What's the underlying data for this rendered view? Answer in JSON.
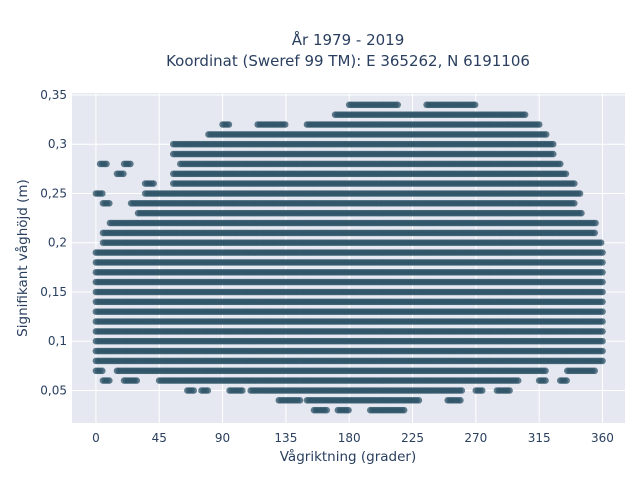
{
  "chart_data": {
    "type": "scatter",
    "title": "År 1979 - 2019",
    "subtitle": "Koordinat (Sweref 99 TM): E 365262, N 6191106",
    "xlabel": "Vågriktning (grader)",
    "ylabel": "Signifikant våghöjd (m)",
    "xlim": [
      -17,
      376
    ],
    "ylim": [
      0.017,
      0.352
    ],
    "x_ticks": [
      0,
      45,
      90,
      135,
      180,
      225,
      270,
      315,
      360
    ],
    "x_tick_labels": [
      "0",
      "45",
      "90",
      "135",
      "180",
      "225",
      "270",
      "315",
      "360"
    ],
    "y_ticks": [
      0.05,
      0.1,
      0.15,
      0.2,
      0.25,
      0.3,
      0.35
    ],
    "y_tick_labels": [
      "0,05",
      "0,1",
      "0,15",
      "0,2",
      "0,25",
      "0,3",
      "0,35"
    ],
    "grid": true,
    "series": [
      {
        "marker_color": "#2f5468",
        "y_step": 0.01,
        "rows": [
          {
            "y": 0.03,
            "x_ranges": [
              [
                155,
                165
              ],
              [
                172,
                180
              ],
              [
                195,
                220
              ]
            ]
          },
          {
            "y": 0.04,
            "x_ranges": [
              [
                130,
                145
              ],
              [
                150,
                230
              ],
              [
                250,
                260
              ]
            ]
          },
          {
            "y": 0.05,
            "x_ranges": [
              [
                65,
                70
              ],
              [
                75,
                80
              ],
              [
                95,
                105
              ],
              [
                110,
                260
              ],
              [
                270,
                275
              ],
              [
                285,
                295
              ]
            ]
          },
          {
            "y": 0.06,
            "x_ranges": [
              [
                5,
                10
              ],
              [
                20,
                30
              ],
              [
                45,
                300
              ],
              [
                315,
                320
              ],
              [
                330,
                335
              ]
            ]
          },
          {
            "y": 0.07,
            "x_ranges": [
              [
                0,
                5
              ],
              [
                15,
                320
              ],
              [
                335,
                355
              ]
            ]
          },
          {
            "y": 0.08,
            "x_ranges": [
              [
                0,
                360
              ]
            ]
          },
          {
            "y": 0.09,
            "x_ranges": [
              [
                0,
                360
              ]
            ]
          },
          {
            "y": 0.1,
            "x_ranges": [
              [
                0,
                360
              ]
            ]
          },
          {
            "y": 0.11,
            "x_ranges": [
              [
                0,
                360
              ]
            ]
          },
          {
            "y": 0.12,
            "x_ranges": [
              [
                0,
                360
              ]
            ]
          },
          {
            "y": 0.13,
            "x_ranges": [
              [
                0,
                360
              ]
            ]
          },
          {
            "y": 0.14,
            "x_ranges": [
              [
                0,
                360
              ]
            ]
          },
          {
            "y": 0.15,
            "x_ranges": [
              [
                0,
                360
              ]
            ]
          },
          {
            "y": 0.16,
            "x_ranges": [
              [
                0,
                360
              ]
            ]
          },
          {
            "y": 0.17,
            "x_ranges": [
              [
                0,
                360
              ]
            ]
          },
          {
            "y": 0.18,
            "x_ranges": [
              [
                0,
                360
              ]
            ]
          },
          {
            "y": 0.19,
            "x_ranges": [
              [
                0,
                360
              ]
            ]
          },
          {
            "y": 0.2,
            "x_ranges": [
              [
                5,
                360
              ]
            ]
          },
          {
            "y": 0.21,
            "x_ranges": [
              [
                5,
                355
              ]
            ]
          },
          {
            "y": 0.22,
            "x_ranges": [
              [
                10,
                355
              ]
            ]
          },
          {
            "y": 0.23,
            "x_ranges": [
              [
                30,
                345
              ]
            ]
          },
          {
            "y": 0.24,
            "x_ranges": [
              [
                5,
                10
              ],
              [
                25,
                340
              ]
            ]
          },
          {
            "y": 0.25,
            "x_ranges": [
              [
                0,
                5
              ],
              [
                35,
                345
              ]
            ]
          },
          {
            "y": 0.26,
            "x_ranges": [
              [
                35,
                42
              ],
              [
                55,
                340
              ]
            ]
          },
          {
            "y": 0.27,
            "x_ranges": [
              [
                15,
                20
              ],
              [
                55,
                335
              ]
            ]
          },
          {
            "y": 0.28,
            "x_ranges": [
              [
                3,
                8
              ],
              [
                20,
                25
              ],
              [
                60,
                330
              ]
            ]
          },
          {
            "y": 0.29,
            "x_ranges": [
              [
                55,
                325
              ]
            ]
          },
          {
            "y": 0.3,
            "x_ranges": [
              [
                55,
                325
              ]
            ]
          },
          {
            "y": 0.31,
            "x_ranges": [
              [
                80,
                320
              ]
            ]
          },
          {
            "y": 0.32,
            "x_ranges": [
              [
                90,
                95
              ],
              [
                115,
                135
              ],
              [
                150,
                315
              ]
            ]
          },
          {
            "y": 0.33,
            "x_ranges": [
              [
                170,
                305
              ]
            ]
          },
          {
            "y": 0.34,
            "x_ranges": [
              [
                180,
                215
              ],
              [
                235,
                270
              ]
            ]
          }
        ]
      }
    ]
  }
}
